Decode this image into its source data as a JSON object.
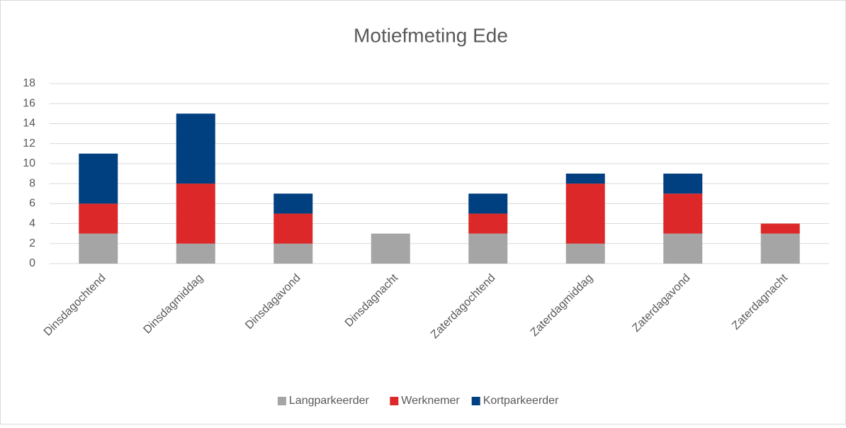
{
  "chart_data": {
    "type": "stacked_bar",
    "title": "Motiefmeting Ede",
    "categories": [
      "Dinsdagochtend",
      "Dinsdagmiddag",
      "Dinsdagavond",
      "Dinsdagnacht",
      "Zaterdagochtend",
      "Zaterdagmiddag",
      "Zaterdagavond",
      "Zaterdagnacht"
    ],
    "series": [
      {
        "name": "Langparkeerder",
        "color": "#a5a5a5",
        "values": [
          3,
          2,
          2,
          3,
          3,
          2,
          3,
          3
        ]
      },
      {
        "name": "Werknemer",
        "color": "#dc2828",
        "values": [
          3,
          6,
          3,
          0,
          2,
          6,
          4,
          1
        ]
      },
      {
        "name": "Kortparkeerder",
        "color": "#003f80",
        "values": [
          5,
          7,
          2,
          0,
          2,
          1,
          2,
          0
        ]
      }
    ],
    "ylim": [
      0,
      18
    ],
    "yticks": [
      0,
      2,
      4,
      6,
      8,
      10,
      12,
      14,
      16,
      18
    ],
    "grid": true,
    "legend": "bottom"
  }
}
